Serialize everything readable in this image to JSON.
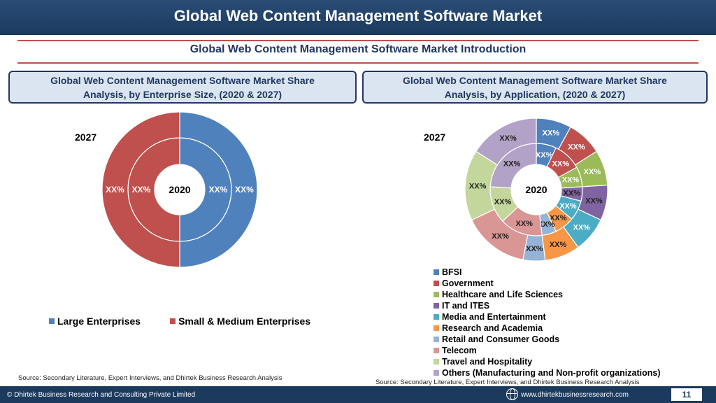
{
  "header": {
    "title": "Global Web Content Management Software Market"
  },
  "subtitle": "Global Web Content Management Software Market Introduction",
  "left_panel": {
    "heading_line1": "Global Web Content Management Software Market Share",
    "heading_line2": "Analysis, by Enterprise Size, (2020 & 2027)",
    "year_outer": "2027",
    "source": "Source: Secondary Literature, Expert Interviews, and Dhirtek Business Research Analysis"
  },
  "right_panel": {
    "heading_line1": "Global Web Content Management Software Market Share",
    "heading_line2": "Analysis, by Application, (2020 & 2027)",
    "year_outer": "2027",
    "source": "Source: Secondary Literature, Expert Interviews, and Dhirtek Business Research Analysis"
  },
  "footer": {
    "copyright": "© Dhirtek Business Research and Consulting Private Limited",
    "url": "www.dhirtekbusinessresearch.com",
    "page": "11"
  },
  "chart_data": [
    {
      "type": "pie",
      "variant": "nested-donut",
      "center_label": "2020",
      "outer_year": "2027",
      "categories": [
        "Large Enterprises",
        "Small & Medium Enterprises"
      ],
      "colors": [
        "#4f81bd",
        "#c0504d"
      ],
      "series": [
        {
          "name": "2020",
          "ring": "inner",
          "values": [
            50,
            50
          ],
          "labels": [
            "XX%",
            "XX%"
          ]
        },
        {
          "name": "2027",
          "ring": "outer",
          "values": [
            50,
            50
          ],
          "labels": [
            "XX%",
            "XX%"
          ]
        }
      ],
      "legend_position": "bottom"
    },
    {
      "type": "pie",
      "variant": "nested-donut",
      "center_label": "2020",
      "outer_year": "2027",
      "categories": [
        "BFSI",
        "Government",
        "Healthcare and Life Sciences",
        "IT and ITES",
        "Media and Entertainment",
        "Research and Academia",
        "Retail and Consumer Goods",
        "Telecom",
        "Travel and Hospitality",
        "Others (Manufacturing and Non-profit organizations)"
      ],
      "colors": [
        "#4f81bd",
        "#c0504d",
        "#9bbb59",
        "#8064a2",
        "#4bacc6",
        "#f79646",
        "#95b3d7",
        "#d99694",
        "#c3d69b",
        "#b2a2c7"
      ],
      "series": [
        {
          "name": "2020",
          "ring": "inner",
          "values": [
            7,
            10,
            7,
            5,
            7,
            7,
            5,
            15,
            13,
            24
          ],
          "labels": [
            "XX%",
            "XX%",
            "XX%",
            "XX%",
            "XX%",
            "XX%",
            "XX%",
            "XX%",
            "XX%",
            "XX%"
          ]
        },
        {
          "name": "2027",
          "ring": "outer",
          "values": [
            8,
            8,
            8,
            8,
            8,
            8,
            5,
            15,
            16,
            16
          ],
          "labels": [
            "XX%",
            "XX%",
            "XX%",
            "XX%",
            "XX%",
            "XX%",
            "XX%",
            "XX%",
            "XX%",
            "XX%"
          ]
        }
      ],
      "legend_position": "bottom-right"
    }
  ]
}
